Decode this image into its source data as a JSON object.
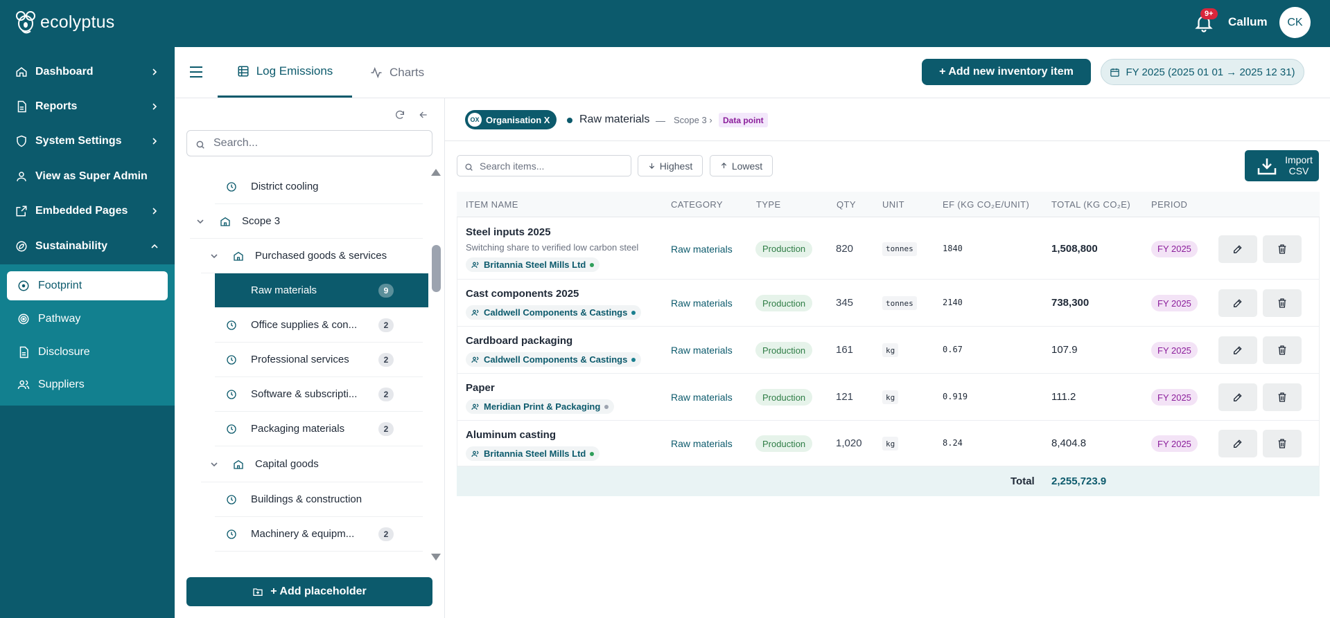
{
  "app": {
    "name": "ecolyptus"
  },
  "header": {
    "notifications_badge": "9+",
    "user_name": "Callum",
    "user_initials": "CK"
  },
  "sidebar": {
    "items": [
      {
        "label": "Dashboard",
        "icon": "home-icon",
        "has_chevron": true
      },
      {
        "label": "Reports",
        "icon": "file-icon",
        "has_chevron": true
      },
      {
        "label": "System Settings",
        "icon": "shield-icon",
        "has_chevron": true
      },
      {
        "label": "View as Super Admin",
        "icon": "user-icon",
        "has_chevron": false
      },
      {
        "label": "Embedded Pages",
        "icon": "external-link-icon",
        "has_chevron": true
      },
      {
        "label": "Sustainability",
        "icon": "leaf-icon",
        "has_chevron": true,
        "expanded": true
      }
    ],
    "sub_items": [
      {
        "label": "Footprint",
        "icon": "plus-circle-icon",
        "active": true
      },
      {
        "label": "Pathway",
        "icon": "target-icon",
        "active": false
      },
      {
        "label": "Disclosure",
        "icon": "file-icon",
        "active": false
      },
      {
        "label": "Suppliers",
        "icon": "users-icon",
        "active": false
      }
    ]
  },
  "tabs": [
    {
      "label": "Log Emissions",
      "icon": "table-icon",
      "active": true
    },
    {
      "label": "Charts",
      "icon": "activity-icon",
      "active": false
    }
  ],
  "toolbar": {
    "add_inventory_label": "+ Add new inventory item",
    "period_label": "FY 2025 (2025 01 01 → 2025 12 31)"
  },
  "tree": {
    "search_placeholder": "Search...",
    "rows": [
      {
        "label": "District cooling",
        "level": 3,
        "icon": "clock-icon",
        "count": ""
      },
      {
        "label": "Scope 3",
        "level": 1,
        "icon": "building-icon",
        "count": "",
        "expandable": true
      },
      {
        "label": "Purchased goods & services",
        "level": 2,
        "icon": "building-icon",
        "count": "",
        "expandable": true
      },
      {
        "label": "Raw materials",
        "level": 3,
        "icon": "",
        "count": "9",
        "active": true
      },
      {
        "label": "Office supplies & con...",
        "level": 3,
        "icon": "clock-icon",
        "count": "2"
      },
      {
        "label": "Professional services",
        "level": 3,
        "icon": "clock-icon",
        "count": "2"
      },
      {
        "label": "Software & subscripti...",
        "level": 3,
        "icon": "clock-icon",
        "count": "2"
      },
      {
        "label": "Packaging materials",
        "level": 3,
        "icon": "clock-icon",
        "count": "2"
      },
      {
        "label": "Capital goods",
        "level": 2,
        "icon": "building-icon",
        "count": "",
        "expandable": true
      },
      {
        "label": "Buildings & construction",
        "level": 3,
        "icon": "clock-icon",
        "count": ""
      },
      {
        "label": "Machinery & equipm...",
        "level": 3,
        "icon": "clock-icon",
        "count": "2"
      }
    ],
    "add_placeholder_label": "+ Add placeholder"
  },
  "breadcrumb": {
    "org_initials": "OX",
    "org_name": "Organisation X",
    "current": "Raw materials",
    "separator": "—",
    "scope": "Scope 3 ›",
    "badge": "Data point"
  },
  "filters": {
    "search_placeholder": "Search items...",
    "highest_label": "Highest",
    "lowest_label": "Lowest",
    "import_label_1": "Import",
    "import_label_2": "CSV"
  },
  "table": {
    "columns": [
      "ITEM NAME",
      "CATEGORY",
      "TYPE",
      "QTY",
      "UNIT",
      "EF (KG CO₂E/UNIT)",
      "TOTAL (KG CO₂E)",
      "PERIOD"
    ],
    "rows": [
      {
        "name": "Steel inputs 2025",
        "note": "Switching share to verified low carbon steel",
        "supplier": "Britannia Steel Mills Ltd",
        "supplier_dot": "#2f9e5a",
        "category": "Raw materials",
        "type": "Production",
        "qty": "820",
        "unit": "tonnes",
        "ef": "1840",
        "total": "1,508,800",
        "total_bold": true,
        "period": "FY 2025"
      },
      {
        "name": "Cast components 2025",
        "note": "",
        "supplier": "Caldwell Components & Castings",
        "supplier_dot": "#1a7f8f",
        "category": "Raw materials",
        "type": "Production",
        "qty": "345",
        "unit": "tonnes",
        "ef": "2140",
        "total": "738,300",
        "total_bold": true,
        "period": "FY 2025"
      },
      {
        "name": "Cardboard packaging",
        "note": "",
        "supplier": "Caldwell Components & Castings",
        "supplier_dot": "#1a7f8f",
        "category": "Raw materials",
        "type": "Production",
        "qty": "161",
        "unit": "kg",
        "ef": "0.67",
        "total": "107.9",
        "total_bold": false,
        "period": "FY 2025"
      },
      {
        "name": "Paper",
        "note": "",
        "supplier": "Meridian Print & Packaging",
        "supplier_dot": "#9ca3af",
        "category": "Raw materials",
        "type": "Production",
        "qty": "121",
        "unit": "kg",
        "ef": "0.919",
        "total": "111.2",
        "total_bold": false,
        "period": "FY 2025"
      },
      {
        "name": "Aluminum casting",
        "note": "",
        "supplier": "Britannia Steel Mills Ltd",
        "supplier_dot": "#2f9e5a",
        "category": "Raw materials",
        "type": "Production",
        "qty": "1,020",
        "unit": "kg",
        "ef": "8.24",
        "total": "8,404.8",
        "total_bold": false,
        "period": "FY 2025"
      }
    ],
    "total_label": "Total",
    "total_value": "2,255,723.9"
  },
  "colors": {
    "brand": "#0c5a6c",
    "sidebar_sub": "#12808f",
    "production": "#2f7d46",
    "period": "#8b1e9b",
    "alert": "#d9263b"
  }
}
